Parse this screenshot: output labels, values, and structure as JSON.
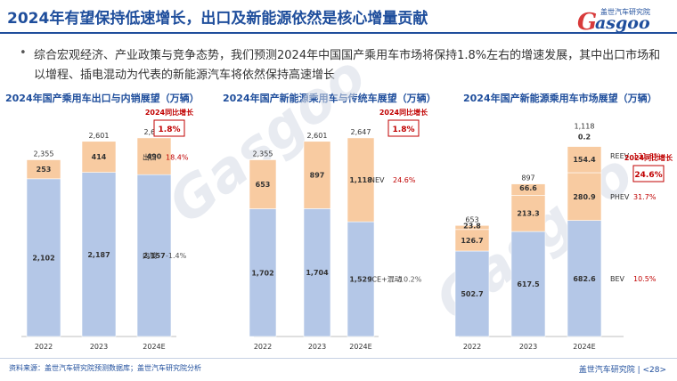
{
  "header": {
    "title": "2024年有望保持低速增长，出口及新能源依然是核心增量贡献",
    "logo_cn": "盖世汽车研究院",
    "logo_en": "asgoo",
    "logo_g": "G"
  },
  "bullet": {
    "dot": "•",
    "text": "综合宏观经济、产业政策与竞争态势，我们预测2024年中国国产乘用车市场将保持1.8%左右的增速发展，其中出口市场和以增程、插电混动为代表的新能源汽车将依然保持高速增长"
  },
  "watermark": {
    "text": "Gasgoo",
    "sub": "在这里读懂汽车产业",
    "cn": "盖世汽车研究院"
  },
  "footer": {
    "source": "资料来源：盖世汽车研究院预测数据库；盖世汽车研究院分析",
    "page": "盖世汽车研究院 | <28>"
  },
  "colors": {
    "blue": "#b4c7e7",
    "orange": "#f8cba1",
    "red": "#c00000",
    "title_blue": "#1f4e9c"
  },
  "chart_data": [
    {
      "type": "bar",
      "stacked": true,
      "title": "2024年国产乘用车出口与内销展望（万辆）",
      "categories": [
        "2022",
        "2023",
        "2024E"
      ],
      "series": [
        {
          "name": "内销",
          "values": [
            2102,
            2187,
            2157
          ],
          "labels": [
            "2,102",
            "2,187",
            "2,157"
          ],
          "growth": "-1.4%"
        },
        {
          "name": "出口",
          "values": [
            253,
            414,
            490
          ],
          "labels": [
            "253",
            "414",
            "490"
          ],
          "growth": "18.4%"
        }
      ],
      "totals": [
        "2,355",
        "2,601",
        "2,647"
      ],
      "total_values": [
        2355,
        2601,
        2647
      ],
      "growth_label": "2024同比增长",
      "growth_value": "1.8%",
      "ylim": [
        0,
        2800
      ]
    },
    {
      "type": "bar",
      "stacked": true,
      "title": "2024年国产新能源乘用车与传统车展望（万辆）",
      "categories": [
        "2022",
        "2023",
        "2024E"
      ],
      "series": [
        {
          "name": "ICE+混动",
          "values": [
            1702,
            1704,
            1529
          ],
          "labels": [
            "1,702",
            "1,704",
            "1,529"
          ],
          "growth": "-10.2%"
        },
        {
          "name": "NEV",
          "values": [
            653,
            897,
            1118
          ],
          "labels": [
            "653",
            "897",
            "1,118"
          ],
          "growth": "24.6%"
        }
      ],
      "totals": [
        "2,355",
        "2,601",
        "2,647"
      ],
      "total_values": [
        2355,
        2601,
        2647
      ],
      "growth_label": "2024同比增长",
      "growth_value": "1.8%",
      "ylim": [
        0,
        2800
      ]
    },
    {
      "type": "bar",
      "stacked": true,
      "title": "2024年国产新能源乘用车市场展望（万辆）",
      "categories": [
        "2022",
        "2023",
        "2024E"
      ],
      "series": [
        {
          "name": "BEV",
          "values": [
            502.7,
            617.5,
            682.6
          ],
          "labels": [
            "502.7",
            "617.5",
            "682.6"
          ],
          "growth": "10.5%"
        },
        {
          "name": "PHEV",
          "values": [
            126.7,
            213.3,
            280.9
          ],
          "labels": [
            "126.7",
            "213.3",
            "280.9"
          ],
          "growth": "31.7%"
        },
        {
          "name": "REEV",
          "values": [
            23.8,
            66.6,
            154.4
          ],
          "labels": [
            "23.8",
            "66.6",
            "154.4"
          ],
          "growth": "131.8%"
        },
        {
          "name": "",
          "values": [
            0,
            0,
            0.2
          ],
          "labels": [
            "",
            "",
            "0.2"
          ],
          "growth": ""
        }
      ],
      "totals": [
        "653",
        "897",
        "1,118"
      ],
      "total_values": [
        653,
        897,
        1118
      ],
      "growth_label": "2024同比增长",
      "growth_value": "24.6%",
      "ylim": [
        0,
        1330
      ]
    }
  ]
}
